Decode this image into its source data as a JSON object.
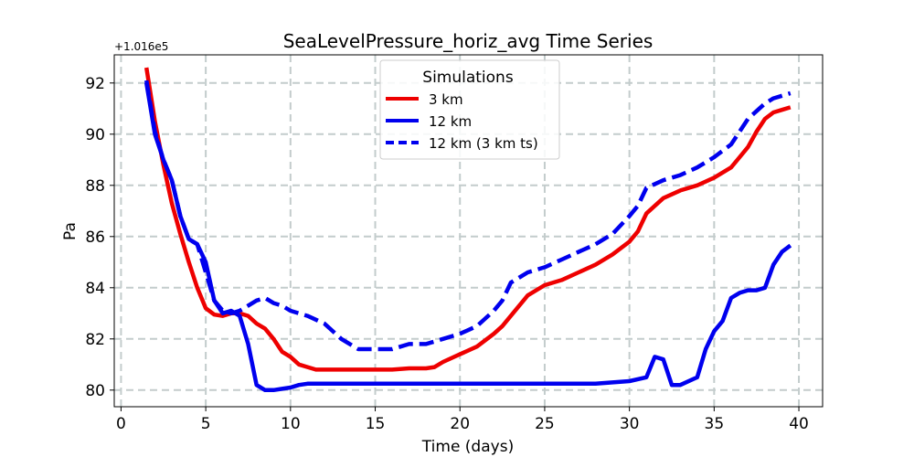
{
  "chart_data": {
    "type": "line",
    "title": "SeaLevelPressure_horiz_avg Time Series",
    "xlabel": "Time (days)",
    "ylabel": "Pa",
    "offset_label": "+1.016e5",
    "xlim": [
      -0.4,
      41.4
    ],
    "ylim": [
      79.35,
      93.1
    ],
    "xticks": [
      0,
      5,
      10,
      15,
      20,
      25,
      30,
      35,
      40
    ],
    "yticks": [
      80,
      82,
      84,
      86,
      88,
      90,
      92
    ],
    "grid": true,
    "legend": {
      "title": "Simulations",
      "position": "top-center"
    },
    "series": [
      {
        "name": "3 km",
        "color": "#ee0000",
        "dash": "solid",
        "x": [
          1.5,
          2,
          2.5,
          3,
          3.5,
          4,
          4.5,
          5,
          5.5,
          6,
          6.5,
          7,
          7.5,
          8,
          8.5,
          9,
          9.5,
          10,
          10.5,
          11,
          11.5,
          12,
          13,
          14,
          15,
          16,
          17,
          18,
          18.5,
          19,
          20,
          21,
          22,
          22.5,
          23,
          24,
          25,
          26,
          27,
          28,
          29,
          30,
          30.5,
          31,
          32,
          33,
          34,
          35,
          36,
          36.5,
          37,
          37.5,
          38,
          38.5,
          39,
          39.5
        ],
        "y": [
          92.6,
          90.5,
          88.8,
          87.3,
          86.1,
          85.0,
          84.0,
          83.2,
          82.95,
          82.9,
          83.0,
          83.0,
          82.9,
          82.6,
          82.4,
          82.0,
          81.5,
          81.3,
          81.0,
          80.9,
          80.8,
          80.8,
          80.8,
          80.8,
          80.8,
          80.8,
          80.85,
          80.85,
          80.9,
          81.1,
          81.4,
          81.7,
          82.2,
          82.5,
          82.9,
          83.7,
          84.1,
          84.3,
          84.6,
          84.9,
          85.3,
          85.8,
          86.2,
          86.9,
          87.5,
          87.8,
          88.0,
          88.3,
          88.7,
          89.1,
          89.5,
          90.1,
          90.6,
          90.85,
          90.95,
          91.05
        ]
      },
      {
        "name": "12 km",
        "color": "#0000ee",
        "dash": "solid",
        "x": [
          1.5,
          2,
          2.5,
          3,
          3.5,
          4,
          4.5,
          5,
          5.5,
          6,
          6.5,
          7,
          7.5,
          8,
          8.5,
          9,
          9.5,
          10,
          10.5,
          11,
          12,
          14,
          16,
          18,
          20,
          22,
          24,
          26,
          28,
          29,
          30,
          31,
          31.5,
          32,
          32.5,
          33,
          34,
          34.5,
          35,
          35.5,
          36,
          36.5,
          37,
          37.5,
          38,
          38.5,
          39,
          39.5
        ],
        "y": [
          92.0,
          90.0,
          89.0,
          88.2,
          86.8,
          85.9,
          85.7,
          85.0,
          83.5,
          83.0,
          83.1,
          82.9,
          81.8,
          80.2,
          80.0,
          80.0,
          80.05,
          80.1,
          80.2,
          80.25,
          80.25,
          80.25,
          80.25,
          80.25,
          80.25,
          80.25,
          80.25,
          80.25,
          80.25,
          80.3,
          80.35,
          80.5,
          81.3,
          81.2,
          80.2,
          80.2,
          80.5,
          81.6,
          82.3,
          82.7,
          83.6,
          83.8,
          83.9,
          83.9,
          84.0,
          84.9,
          85.4,
          85.65
        ]
      },
      {
        "name": "12 km (3 km ts)",
        "color": "#0000ee",
        "dash": "dashed",
        "x": [
          1.5,
          2,
          2.5,
          3,
          3.5,
          4,
          4.5,
          5,
          5.5,
          6,
          6.5,
          7,
          7.5,
          8,
          8.5,
          9,
          9.5,
          10,
          11,
          12,
          13,
          14,
          15,
          16,
          17,
          18,
          19,
          20,
          21,
          22,
          22.5,
          23,
          24,
          25,
          26,
          27,
          28,
          29,
          30,
          30.5,
          31,
          32,
          33,
          34,
          35,
          36,
          36.5,
          37,
          37.5,
          38,
          38.5,
          39,
          39.5
        ],
        "y": [
          92.1,
          90.1,
          89.0,
          88.2,
          86.8,
          85.9,
          85.7,
          84.6,
          83.5,
          83.1,
          83.0,
          83.1,
          83.3,
          83.5,
          83.6,
          83.4,
          83.3,
          83.1,
          82.9,
          82.6,
          82.0,
          81.6,
          81.6,
          81.6,
          81.8,
          81.8,
          82.0,
          82.2,
          82.5,
          83.1,
          83.5,
          84.2,
          84.6,
          84.8,
          85.1,
          85.4,
          85.7,
          86.1,
          86.8,
          87.2,
          87.9,
          88.2,
          88.4,
          88.7,
          89.1,
          89.6,
          90.1,
          90.6,
          90.9,
          91.2,
          91.4,
          91.5,
          91.6
        ]
      }
    ]
  }
}
